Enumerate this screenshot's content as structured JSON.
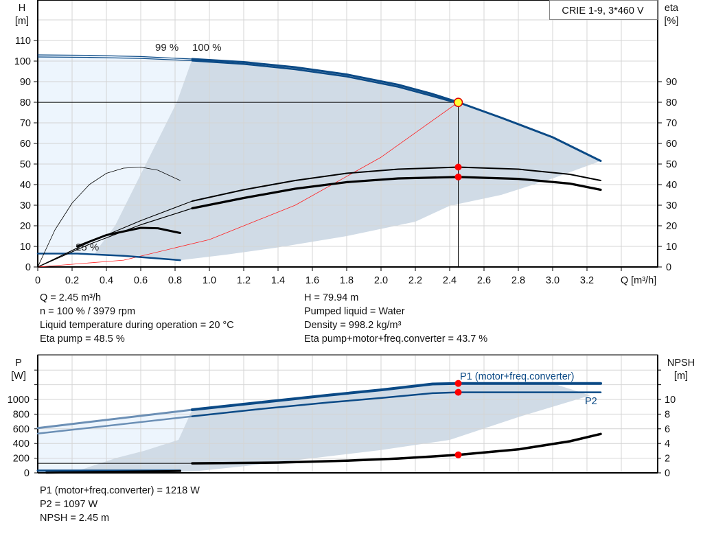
{
  "chart_data": [
    {
      "type": "line",
      "title": "CRIE 1-9, 3*460 V",
      "xlabel": "Q [m³/h]",
      "ylabel_left": [
        "H",
        "[m]"
      ],
      "ylabel_right": [
        "eta",
        "[%]"
      ],
      "xlim": [
        0,
        3.6
      ],
      "ylim_left": [
        0,
        130
      ],
      "ylim_right": [
        0,
        130
      ],
      "x_ticks": [
        "0",
        "0.2",
        "0.4",
        "0.6",
        "0.8",
        "1.0",
        "1.2",
        "1.4",
        "1.6",
        "1.8",
        "2.0",
        "2.2",
        "2.4",
        "2.6",
        "2.8",
        "3.0",
        "3.2"
      ],
      "y_ticks_left": [
        "0",
        "10",
        "20",
        "30",
        "40",
        "50",
        "60",
        "70",
        "80",
        "90",
        "100",
        "110"
      ],
      "y_ticks_right": [
        "0",
        "10",
        "20",
        "30",
        "40",
        "50",
        "60",
        "70",
        "80",
        "90"
      ],
      "grid": true,
      "annotations": [
        "100 %",
        "99 %",
        "25 %"
      ],
      "series": [
        {
          "curve": "head-100",
          "color": "#0b4a86",
          "points": [
            [
              0,
              103
            ],
            [
              0.3,
              102.8
            ],
            [
              0.6,
              102.2
            ],
            [
              0.9,
              101
            ],
            [
              1.2,
              99.5
            ],
            [
              1.5,
              97
            ],
            [
              1.8,
              93.5
            ],
            [
              2.1,
              88.5
            ],
            [
              2.3,
              84
            ],
            [
              2.45,
              80
            ],
            [
              2.7,
              72.5
            ],
            [
              3.0,
              63
            ],
            [
              3.28,
              51.5
            ]
          ]
        },
        {
          "curve": "head-99",
          "color": "#0b4a86",
          "points": [
            [
              0,
              102
            ],
            [
              0.3,
              101.8
            ],
            [
              0.6,
              101.3
            ],
            [
              0.9,
              100.2
            ],
            [
              1.2,
              98.6
            ],
            [
              1.5,
              96
            ],
            [
              1.8,
              92.5
            ],
            [
              2.1,
              87.5
            ],
            [
              2.3,
              83
            ],
            [
              2.45,
              79.5
            ]
          ]
        },
        {
          "curve": "head-25",
          "color": "#0b4a86",
          "points": [
            [
              0,
              6.5
            ],
            [
              0.23,
              6.5
            ],
            [
              0.5,
              5.4
            ],
            [
              0.83,
              3.3
            ]
          ]
        },
        {
          "curve": "eta-pump",
          "color": "#000000",
          "points": [
            [
              0,
              0
            ],
            [
              0.3,
              12
            ],
            [
              0.6,
              22.5
            ],
            [
              0.9,
              32
            ],
            [
              1.2,
              37.5
            ],
            [
              1.5,
              42
            ],
            [
              1.8,
              45.5
            ],
            [
              2.1,
              47.5
            ],
            [
              2.45,
              48.5
            ],
            [
              2.8,
              47.5
            ],
            [
              3.1,
              45
            ],
            [
              3.28,
              42
            ]
          ]
        },
        {
          "curve": "eta-total",
          "color": "#000000",
          "points": [
            [
              0,
              0
            ],
            [
              0.3,
              11
            ],
            [
              0.6,
              20.5
            ],
            [
              0.9,
              28.5
            ],
            [
              1.2,
              33.5
            ],
            [
              1.5,
              38
            ],
            [
              1.8,
              41.2
            ],
            [
              2.1,
              43
            ],
            [
              2.45,
              43.7
            ],
            [
              2.8,
              42.8
            ],
            [
              3.1,
              40.5
            ],
            [
              3.28,
              37.5
            ]
          ]
        },
        {
          "curve": "eta-pump-25",
          "color": "#000000",
          "points": [
            [
              0,
              0
            ],
            [
              0.1,
              18
            ],
            [
              0.2,
              31
            ],
            [
              0.3,
              40
            ],
            [
              0.4,
              45.5
            ],
            [
              0.5,
              48
            ],
            [
              0.6,
              48.5
            ],
            [
              0.7,
              47
            ],
            [
              0.83,
              42
            ]
          ]
        },
        {
          "curve": "eta-total-25",
          "color": "#000000",
          "points": [
            [
              0.23,
              10
            ],
            [
              0.4,
              15.5
            ],
            [
              0.6,
              19
            ],
            [
              0.7,
              18.8
            ],
            [
              0.83,
              16.5
            ]
          ]
        },
        {
          "curve": "system",
          "color": "#ff0000",
          "points": [
            [
              0,
              0
            ],
            [
              0.5,
              3.3
            ],
            [
              1.0,
              13.3
            ],
            [
              1.5,
              30
            ],
            [
              2.0,
              53.3
            ],
            [
              2.45,
              80
            ]
          ]
        }
      ],
      "duty_point": {
        "Q": 2.45,
        "H": 79.94,
        "eta_pump": 48.5,
        "eta_total": 43.7
      },
      "info": {
        "left": [
          "Q = 2.45 m³/h",
          "n = 100 % / 3979 rpm",
          "Liquid temperature during operation = 20 °C",
          "Eta pump = 48.5 %"
        ],
        "right": [
          "H = 79.94 m",
          "Pumped liquid = Water",
          "Density = 998.2 kg/m³",
          "Eta pump+motor+freq.converter = 43.7 %"
        ]
      }
    },
    {
      "type": "line",
      "ylabel_left": [
        "P",
        "[W]"
      ],
      "ylabel_right": [
        "NPSH",
        "[m]"
      ],
      "xlim": [
        0,
        3.6
      ],
      "ylim_left": [
        0,
        1600
      ],
      "ylim_right": [
        0,
        16
      ],
      "y_ticks_left": [
        "0",
        "200",
        "400",
        "600",
        "800",
        "1000"
      ],
      "y_ticks_right": [
        "0",
        "2",
        "4",
        "6",
        "8",
        "10"
      ],
      "grid": true,
      "annotations": [
        "P1 (motor+freq.converter)",
        "P2"
      ],
      "series": [
        {
          "curve": "P1",
          "name": "P1 (motor+freq.converter)",
          "color": "#0b4a86",
          "axis": "left",
          "points": [
            [
              0,
              610
            ],
            [
              0.9,
              860
            ],
            [
              1.3,
              960
            ],
            [
              1.7,
              1060
            ],
            [
              2.0,
              1130
            ],
            [
              2.3,
              1210
            ],
            [
              2.45,
              1218
            ],
            [
              3.28,
              1218
            ]
          ]
        },
        {
          "curve": "P2",
          "name": "P2",
          "color": "#0b4a86",
          "axis": "left",
          "points": [
            [
              0,
              535
            ],
            [
              0.9,
              770
            ],
            [
              1.3,
              870
            ],
            [
              1.7,
              960
            ],
            [
              2.0,
              1020
            ],
            [
              2.3,
              1085
            ],
            [
              2.45,
              1097
            ],
            [
              3.28,
              1097
            ]
          ]
        },
        {
          "curve": "NPSH",
          "color": "#000000",
          "axis": "right",
          "points": [
            [
              0,
              1.3
            ],
            [
              0.9,
              1.3
            ],
            [
              1.4,
              1.4
            ],
            [
              1.8,
              1.65
            ],
            [
              2.1,
              1.95
            ],
            [
              2.45,
              2.45
            ],
            [
              2.8,
              3.2
            ],
            [
              3.1,
              4.3
            ],
            [
              3.28,
              5.3
            ]
          ]
        }
      ],
      "duty_point": {
        "P1": 1218,
        "P2": 1097,
        "NPSH": 2.45
      },
      "info": [
        "P1 (motor+freq.converter) = 1218 W",
        "P2 = 1097 W",
        "NPSH = 2.45 m"
      ]
    }
  ],
  "colors": {
    "curve_blue": "#0b4a86",
    "shade_grey": "#d0dbe6",
    "shade_light": "#edf5fd",
    "duty_marker": "#ff0000",
    "duty_highlight": "#ffff33"
  }
}
